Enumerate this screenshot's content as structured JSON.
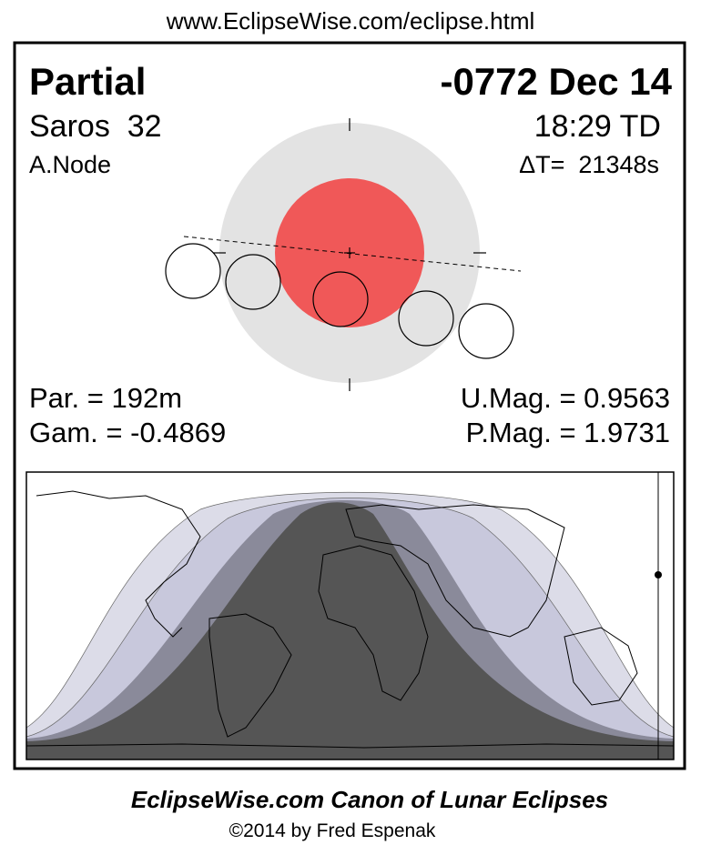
{
  "header": {
    "url": "www.EclipseWise.com/eclipse.html"
  },
  "eclipse": {
    "type": "Partial",
    "date": "-0772 Dec 14",
    "saros": "Saros  32",
    "time": "18:29 TD",
    "node": "A.Node",
    "delta_t": "ΔT=  21348s",
    "duration": "Par. = 192m",
    "gamma": "Gam. = -0.4869",
    "umbral_mag": "U.Mag. = 0.9563",
    "penumbral_mag": "P.Mag. = 1.9731"
  },
  "footer": {
    "title": "EclipseWise.com Canon of Lunar Eclipses",
    "credit": "©2014 by Fred Espenak"
  }
}
